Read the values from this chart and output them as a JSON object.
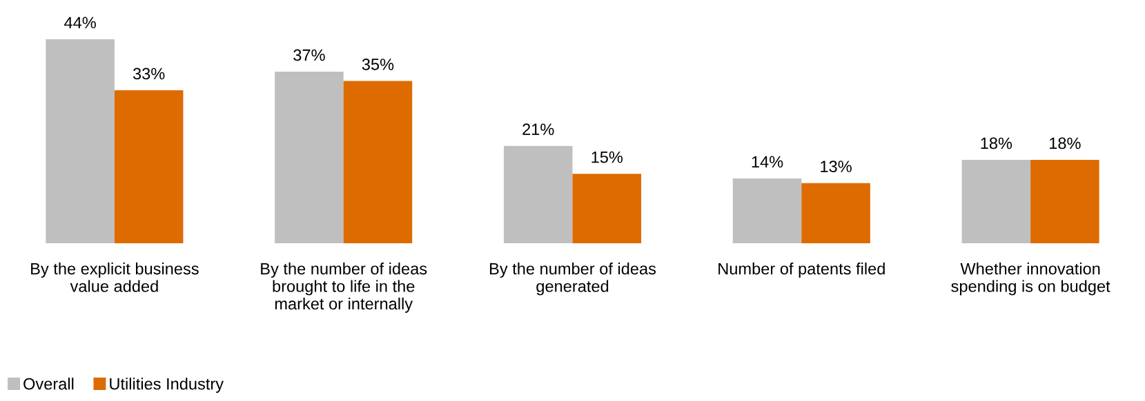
{
  "chart_data": {
    "type": "bar",
    "categories": [
      "By the explicit business\nvalue added",
      "By the number of ideas\nbrought to life in the\nmarket or internally",
      "By the number of ideas\ngenerated",
      "Number of patents filed",
      "Whether innovation\nspending is on budget"
    ],
    "series": [
      {
        "name": "Overall",
        "color": "#bfbfbf",
        "values": [
          44,
          37,
          21,
          14,
          18
        ],
        "value_labels": [
          "44%",
          "37%",
          "21%",
          "14%",
          "18%"
        ]
      },
      {
        "name": "Utilities Industry",
        "color": "#dd6b00",
        "values": [
          33,
          35,
          15,
          13,
          18
        ],
        "value_labels": [
          "33%",
          "35%",
          "15%",
          "13%",
          "18%"
        ]
      }
    ],
    "legend": "bottom left",
    "grid": false,
    "tick_labels": "x"
  }
}
